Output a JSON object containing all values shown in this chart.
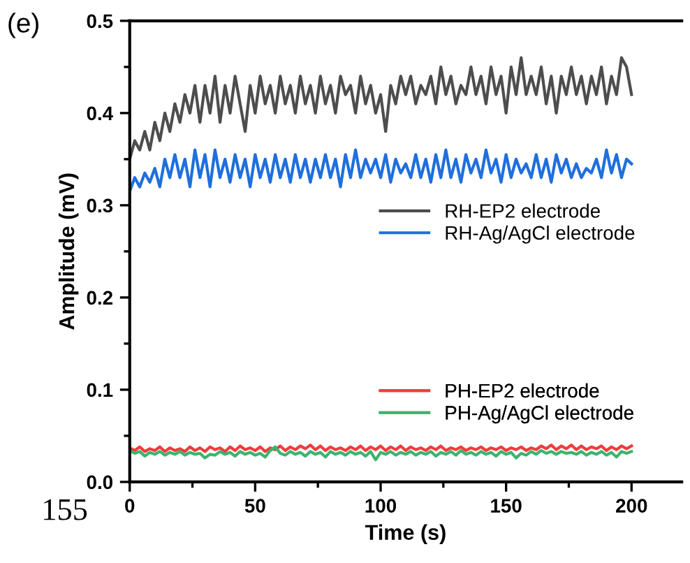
{
  "chart_data": {
    "type": "line",
    "xlabel": "Time (s)",
    "ylabel": "Amplitude (mV)",
    "annotations": [
      "(e)",
      "155"
    ],
    "xlim": [
      0,
      220
    ],
    "xticks": [
      0,
      50,
      100,
      150,
      200
    ],
    "ylim": [
      0,
      0.5
    ],
    "yticks": [
      {
        "value": 0,
        "label": "0.0"
      },
      0.1,
      0.2,
      0.3,
      0.4,
      0.5
    ],
    "grid": false,
    "legend": "right",
    "line_style": "solid",
    "marker": "none",
    "x": [
      0,
      2,
      4,
      6,
      8,
      10,
      12,
      14,
      16,
      18,
      20,
      22,
      24,
      26,
      28,
      30,
      32,
      34,
      36,
      38,
      40,
      42,
      44,
      46,
      48,
      50,
      52,
      54,
      56,
      58,
      60,
      62,
      64,
      66,
      68,
      70,
      72,
      74,
      76,
      78,
      80,
      82,
      84,
      86,
      88,
      90,
      92,
      94,
      96,
      98,
      100,
      102,
      104,
      106,
      108,
      110,
      112,
      114,
      116,
      118,
      120,
      122,
      124,
      126,
      128,
      130,
      132,
      134,
      136,
      138,
      140,
      142,
      144,
      146,
      148,
      150,
      152,
      154,
      156,
      158,
      160,
      162,
      164,
      166,
      168,
      170,
      172,
      174,
      176,
      178,
      180,
      182,
      184,
      186,
      188,
      190,
      192,
      194,
      196,
      198,
      200
    ],
    "series": [
      {
        "name": "RH-EP2 electrode",
        "color": "#4d4d4d",
        "values": [
          0.35,
          0.37,
          0.36,
          0.38,
          0.36,
          0.39,
          0.37,
          0.4,
          0.38,
          0.41,
          0.39,
          0.42,
          0.4,
          0.43,
          0.39,
          0.43,
          0.4,
          0.44,
          0.39,
          0.43,
          0.4,
          0.44,
          0.41,
          0.38,
          0.43,
          0.4,
          0.44,
          0.41,
          0.43,
          0.4,
          0.44,
          0.41,
          0.43,
          0.4,
          0.44,
          0.41,
          0.43,
          0.4,
          0.44,
          0.41,
          0.43,
          0.4,
          0.44,
          0.42,
          0.43,
          0.4,
          0.44,
          0.41,
          0.43,
          0.4,
          0.42,
          0.38,
          0.43,
          0.41,
          0.44,
          0.42,
          0.44,
          0.41,
          0.43,
          0.42,
          0.44,
          0.41,
          0.45,
          0.42,
          0.44,
          0.41,
          0.43,
          0.42,
          0.45,
          0.42,
          0.44,
          0.41,
          0.45,
          0.42,
          0.44,
          0.4,
          0.45,
          0.42,
          0.46,
          0.42,
          0.44,
          0.42,
          0.45,
          0.41,
          0.44,
          0.4,
          0.44,
          0.42,
          0.45,
          0.42,
          0.44,
          0.41,
          0.44,
          0.42,
          0.45,
          0.41,
          0.44,
          0.42,
          0.46,
          0.45,
          0.42
        ]
      },
      {
        "name": "RH-Ag/AgCl electrode",
        "color": "#1f6fdd",
        "values": [
          0.315,
          0.33,
          0.32,
          0.335,
          0.325,
          0.34,
          0.32,
          0.35,
          0.33,
          0.355,
          0.33,
          0.35,
          0.32,
          0.36,
          0.33,
          0.355,
          0.32,
          0.36,
          0.33,
          0.35,
          0.325,
          0.355,
          0.33,
          0.35,
          0.32,
          0.355,
          0.33,
          0.35,
          0.325,
          0.355,
          0.33,
          0.35,
          0.325,
          0.355,
          0.33,
          0.35,
          0.325,
          0.35,
          0.33,
          0.355,
          0.33,
          0.35,
          0.32,
          0.355,
          0.33,
          0.36,
          0.33,
          0.35,
          0.335,
          0.35,
          0.33,
          0.355,
          0.325,
          0.35,
          0.335,
          0.345,
          0.33,
          0.355,
          0.33,
          0.35,
          0.325,
          0.355,
          0.33,
          0.36,
          0.33,
          0.35,
          0.325,
          0.355,
          0.335,
          0.35,
          0.33,
          0.36,
          0.335,
          0.35,
          0.325,
          0.355,
          0.33,
          0.35,
          0.335,
          0.345,
          0.33,
          0.355,
          0.33,
          0.35,
          0.325,
          0.355,
          0.335,
          0.35,
          0.33,
          0.345,
          0.33,
          0.34,
          0.335,
          0.35,
          0.33,
          0.36,
          0.335,
          0.355,
          0.33,
          0.35,
          0.345
        ]
      },
      {
        "name": "PH-EP2 electrode",
        "color": "#f03c3c",
        "values": [
          0.037,
          0.034,
          0.038,
          0.033,
          0.036,
          0.034,
          0.038,
          0.033,
          0.037,
          0.034,
          0.036,
          0.033,
          0.038,
          0.034,
          0.037,
          0.033,
          0.038,
          0.035,
          0.037,
          0.033,
          0.038,
          0.034,
          0.039,
          0.035,
          0.037,
          0.034,
          0.038,
          0.033,
          0.037,
          0.035,
          0.039,
          0.034,
          0.038,
          0.035,
          0.039,
          0.036,
          0.04,
          0.035,
          0.039,
          0.034,
          0.038,
          0.035,
          0.037,
          0.034,
          0.038,
          0.035,
          0.039,
          0.034,
          0.038,
          0.035,
          0.039,
          0.034,
          0.038,
          0.035,
          0.039,
          0.034,
          0.038,
          0.035,
          0.037,
          0.034,
          0.038,
          0.035,
          0.039,
          0.034,
          0.037,
          0.035,
          0.038,
          0.034,
          0.037,
          0.035,
          0.038,
          0.034,
          0.037,
          0.035,
          0.038,
          0.034,
          0.037,
          0.035,
          0.038,
          0.034,
          0.037,
          0.035,
          0.039,
          0.036,
          0.04,
          0.035,
          0.039,
          0.036,
          0.04,
          0.035,
          0.039,
          0.035,
          0.038,
          0.036,
          0.039,
          0.034,
          0.038,
          0.035,
          0.039,
          0.036,
          0.039
        ]
      },
      {
        "name": "PH-Ag/AgCl electrode",
        "color": "#3cb46e",
        "values": [
          0.034,
          0.031,
          0.033,
          0.028,
          0.032,
          0.03,
          0.033,
          0.029,
          0.032,
          0.03,
          0.033,
          0.029,
          0.032,
          0.03,
          0.031,
          0.026,
          0.03,
          0.029,
          0.033,
          0.03,
          0.032,
          0.028,
          0.033,
          0.03,
          0.032,
          0.029,
          0.031,
          0.027,
          0.034,
          0.038,
          0.031,
          0.029,
          0.033,
          0.03,
          0.032,
          0.028,
          0.033,
          0.03,
          0.032,
          0.027,
          0.033,
          0.03,
          0.032,
          0.029,
          0.033,
          0.03,
          0.032,
          0.028,
          0.033,
          0.024,
          0.032,
          0.03,
          0.033,
          0.029,
          0.032,
          0.03,
          0.033,
          0.029,
          0.032,
          0.03,
          0.033,
          0.028,
          0.032,
          0.03,
          0.033,
          0.029,
          0.034,
          0.03,
          0.032,
          0.029,
          0.033,
          0.03,
          0.032,
          0.028,
          0.033,
          0.03,
          0.032,
          0.026,
          0.031,
          0.029,
          0.033,
          0.03,
          0.034,
          0.031,
          0.033,
          0.03,
          0.033,
          0.031,
          0.032,
          0.03,
          0.033,
          0.029,
          0.032,
          0.03,
          0.033,
          0.029,
          0.032,
          0.027,
          0.033,
          0.031,
          0.033
        ]
      }
    ]
  }
}
